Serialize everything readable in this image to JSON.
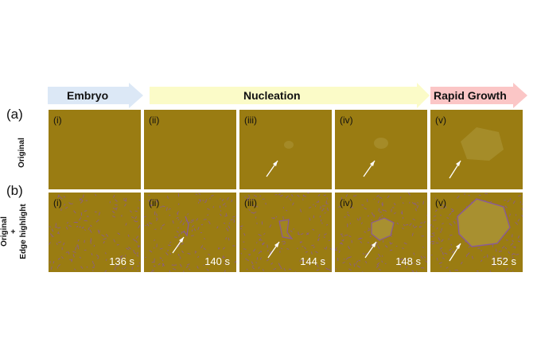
{
  "stages": [
    {
      "label": "Embryo",
      "color": "#dce8f6"
    },
    {
      "label": "Nucleation",
      "color": "#fbfbc8"
    },
    {
      "label": "Rapid Growth",
      "color": "#fbc6c6"
    }
  ],
  "rows": [
    {
      "letter": "(a)",
      "side_label": "Original"
    },
    {
      "letter": "(b)",
      "side_label_line1": "Original",
      "side_label_line2": "+",
      "side_label_line3": "Edge highlight"
    }
  ],
  "panels_a": [
    {
      "roman": "(i)"
    },
    {
      "roman": "(ii)"
    },
    {
      "roman": "(iii)"
    },
    {
      "roman": "(iv)"
    },
    {
      "roman": "(v)"
    }
  ],
  "panels_b": [
    {
      "roman": "(i)",
      "time": "136 s"
    },
    {
      "roman": "(ii)",
      "time": "140 s"
    },
    {
      "roman": "(iii)",
      "time": "144 s"
    },
    {
      "roman": "(iv)",
      "time": "148 s"
    },
    {
      "roman": "(v)",
      "time": "152 s"
    }
  ],
  "colors": {
    "panel_bg": "#9a7c12",
    "edge_dots": "#8a5a9a",
    "arrow": "#ffffff",
    "grain": "#a89030"
  }
}
